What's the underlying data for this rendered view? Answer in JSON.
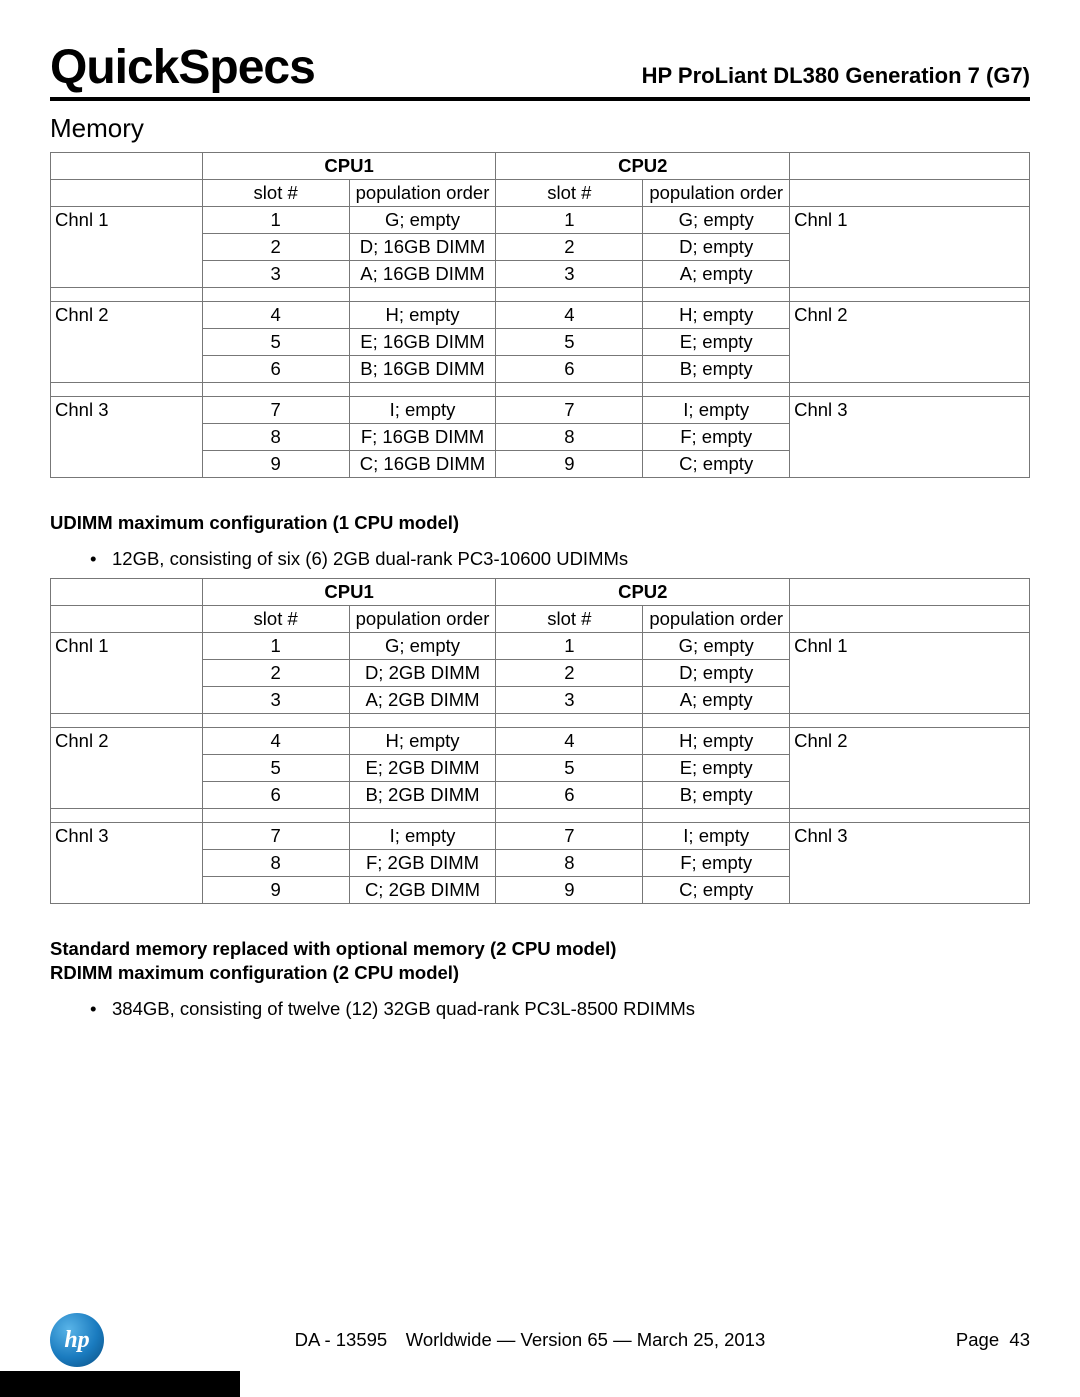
{
  "header": {
    "brand": "QuickSpecs",
    "product": "HP ProLiant DL380 Generation 7 (G7)"
  },
  "section": "Memory",
  "col_labels": {
    "slot": "slot #",
    "pop": "population order"
  },
  "cpu_labels": {
    "cpu1": "CPU1",
    "cpu2": "CPU2"
  },
  "table1": {
    "groups": [
      {
        "chnl": "Chnl 1",
        "rows": [
          {
            "s1": "1",
            "p1": "G; empty",
            "s2": "1",
            "p2": "G; empty"
          },
          {
            "s1": "2",
            "p1": "D; 16GB DIMM",
            "s2": "2",
            "p2": "D; empty"
          },
          {
            "s1": "3",
            "p1": "A; 16GB DIMM",
            "s2": "3",
            "p2": "A; empty"
          }
        ]
      },
      {
        "chnl": "Chnl 2",
        "rows": [
          {
            "s1": "4",
            "p1": "H; empty",
            "s2": "4",
            "p2": "H; empty"
          },
          {
            "s1": "5",
            "p1": "E; 16GB DIMM",
            "s2": "5",
            "p2": "E; empty"
          },
          {
            "s1": "6",
            "p1": "B; 16GB DIMM",
            "s2": "6",
            "p2": "B; empty"
          }
        ]
      },
      {
        "chnl": "Chnl 3",
        "rows": [
          {
            "s1": "7",
            "p1": "I; empty",
            "s2": "7",
            "p2": "I; empty"
          },
          {
            "s1": "8",
            "p1": "F; 16GB DIMM",
            "s2": "8",
            "p2": "F; empty"
          },
          {
            "s1": "9",
            "p1": "C; 16GB DIMM",
            "s2": "9",
            "p2": "C; empty"
          }
        ]
      }
    ]
  },
  "sub1": {
    "heading": "UDIMM maximum configuration (1 CPU model)",
    "bullet": "12GB, consisting of six (6) 2GB dual-rank PC3-10600 UDIMMs"
  },
  "table2": {
    "groups": [
      {
        "chnl": "Chnl 1",
        "rows": [
          {
            "s1": "1",
            "p1": "G; empty",
            "s2": "1",
            "p2": "G; empty"
          },
          {
            "s1": "2",
            "p1": "D; 2GB DIMM",
            "s2": "2",
            "p2": "D; empty"
          },
          {
            "s1": "3",
            "p1": "A; 2GB DIMM",
            "s2": "3",
            "p2": "A; empty"
          }
        ]
      },
      {
        "chnl": "Chnl 2",
        "rows": [
          {
            "s1": "4",
            "p1": "H; empty",
            "s2": "4",
            "p2": "H; empty"
          },
          {
            "s1": "5",
            "p1": "E; 2GB DIMM",
            "s2": "5",
            "p2": "E; empty"
          },
          {
            "s1": "6",
            "p1": "B; 2GB DIMM",
            "s2": "6",
            "p2": "B; empty"
          }
        ]
      },
      {
        "chnl": "Chnl 3",
        "rows": [
          {
            "s1": "7",
            "p1": "I; empty",
            "s2": "7",
            "p2": "I; empty"
          },
          {
            "s1": "8",
            "p1": "F; 2GB DIMM",
            "s2": "8",
            "p2": "F; empty"
          },
          {
            "s1": "9",
            "p1": "C; 2GB DIMM",
            "s2": "9",
            "p2": "C; empty"
          }
        ]
      }
    ]
  },
  "sub2": {
    "heading1": "Standard memory replaced with optional memory (2 CPU model)",
    "heading2": "RDIMM maximum configuration (2 CPU model)",
    "bullet": "384GB, consisting of twelve (12) 32GB quad-rank PC3L-8500 RDIMMs"
  },
  "footer": {
    "logo_text": "hp",
    "center": "DA - 13595 Worldwide — Version 65 — March 25, 2013",
    "page": "Page  43"
  },
  "col_widths": [
    "15.5%",
    "15%",
    "15%",
    "15%",
    "15%",
    "24.5%"
  ]
}
